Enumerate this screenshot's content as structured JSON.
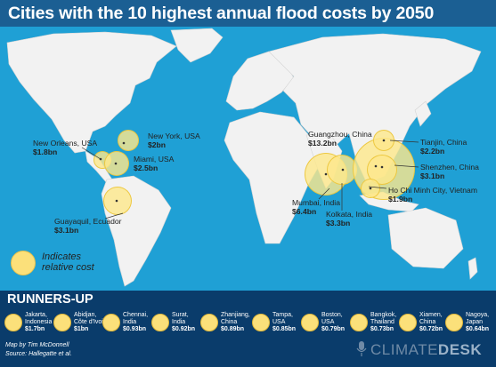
{
  "title": "Cities with the 10 highest annual flood costs by 2050",
  "colors": {
    "ocean": "#1fa0d5",
    "land": "#f2f2f2",
    "bubble": "#fbe07a",
    "banner": "#0a3c6b",
    "header": "#1b5f93"
  },
  "cities": [
    {
      "name": "New York",
      "country": ", USA",
      "cost": "$2bn"
    },
    {
      "name": "New Orleans",
      "country": ", USA",
      "cost": "$1.8bn"
    },
    {
      "name": "Miami",
      "country": ", USA",
      "cost": "$2.5bn"
    },
    {
      "name": "Guayaquil",
      "country": ", Ecuador",
      "cost": "$3.1bn"
    },
    {
      "name": "Guangzhou",
      "country": ", China",
      "cost": "$13.2bn"
    },
    {
      "name": "Tianjin",
      "country": ", China",
      "cost": "$2.2bn"
    },
    {
      "name": "Shenzhen",
      "country": ", China",
      "cost": "$3.1bn"
    },
    {
      "name": "Ho Chi Minh City",
      "country": ", Vietnam",
      "cost": "$1.9bn"
    },
    {
      "name": "Mumbai",
      "country": ", India",
      "cost": "$6.4bn"
    },
    {
      "name": "Kolkata",
      "country": ", India",
      "cost": "$3.3bn"
    }
  ],
  "legend": {
    "line1": "Indicates",
    "line2": "relative cost"
  },
  "runners_up_title": "RUNNERS-UP",
  "runners_up": [
    {
      "city": "Jakarta,",
      "country": "Indonesia",
      "cost": "$1.7bn"
    },
    {
      "city": "Abidjan,",
      "country": "Côte d'Ivoire",
      "cost": "$1bn"
    },
    {
      "city": "Chennai,",
      "country": "India",
      "cost": "$0.93bn"
    },
    {
      "city": "Surat,",
      "country": "India",
      "cost": "$0.92bn"
    },
    {
      "city": "Zhanjiang,",
      "country": "China",
      "cost": "$0.89bn"
    },
    {
      "city": "Tampa,",
      "country": "USA",
      "cost": "$0.85bn"
    },
    {
      "city": "Boston,",
      "country": "USA",
      "cost": "$0.79bn"
    },
    {
      "city": "Bangkok,",
      "country": "Thailand",
      "cost": "$0.73bn"
    },
    {
      "city": "Xiamen,",
      "country": "China",
      "cost": "$0.72bn"
    },
    {
      "city": "Nagoya,",
      "country": "Japan",
      "cost": "$0.64bn"
    }
  ],
  "credits": {
    "line1": "Map by Tim McDonnell",
    "line2": "Source: Hallegatte et al."
  },
  "brand": {
    "part1": "CLIMATE",
    "part2": "DESK"
  }
}
